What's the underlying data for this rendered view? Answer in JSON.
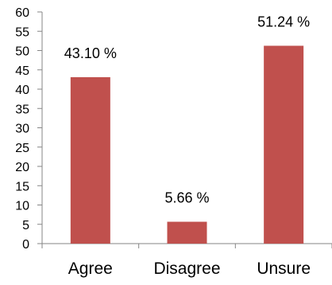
{
  "chart_data": {
    "type": "bar",
    "categories": [
      "Agree",
      "Disagree",
      "Unsure"
    ],
    "values": [
      43.1,
      5.66,
      51.24
    ],
    "data_labels": [
      "43.10 %",
      "5.66 %",
      "51.24 %"
    ],
    "title": "",
    "xlabel": "",
    "ylabel": "",
    "ylim": [
      0,
      60
    ],
    "yticks": [
      0,
      5,
      10,
      15,
      20,
      25,
      30,
      35,
      40,
      45,
      50,
      55,
      60
    ],
    "ytick_labels": [
      "0",
      "5",
      "10",
      "15",
      "20",
      "25",
      "30",
      "35",
      "40",
      "45",
      "50",
      "55",
      "60"
    ],
    "grid": false,
    "legend": "none",
    "bar_color": "#c0504d",
    "axis_color": "#868686"
  }
}
